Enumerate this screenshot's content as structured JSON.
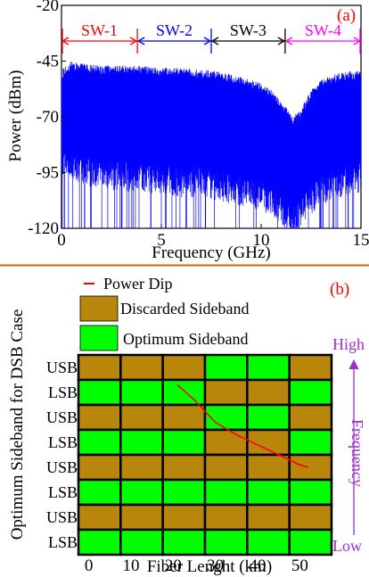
{
  "chart_data": [
    {
      "type": "area",
      "panel_label": "(a)",
      "xlabel": "Frequency (GHz)",
      "ylabel": "Power (dBm)",
      "xlim": [
        0,
        15
      ],
      "ylim": [
        -120,
        -20
      ],
      "xticks": [
        "0",
        "5",
        "10",
        "15"
      ],
      "yticks": [
        "-20",
        "-45",
        "-70",
        "-95",
        "-120"
      ],
      "grid": false,
      "color": "#0000ff",
      "envelope": {
        "x": [
          0,
          0.5,
          1,
          2,
          3,
          4,
          5,
          6,
          7,
          7.5,
          8,
          9,
          10,
          10.5,
          11,
          11.3,
          11.6,
          12,
          12.5,
          13,
          14,
          15
        ],
        "upper": [
          -49,
          -45,
          -46,
          -47,
          -47,
          -47,
          -48,
          -48,
          -49,
          -49,
          -50,
          -52,
          -55,
          -58,
          -63,
          -66,
          -70,
          -66,
          -58,
          -53,
          -50,
          -49
        ],
        "lower": [
          -92,
          -95,
          -97,
          -98,
          -99,
          -100,
          -101,
          -102,
          -102,
          -103,
          -104,
          -106,
          -108,
          -110,
          -114,
          -118,
          -120,
          -116,
          -110,
          -106,
          -102,
          -100
        ]
      },
      "windows": [
        {
          "label": "SW-1",
          "start": 0,
          "end": 3.8,
          "color": "#ff0000"
        },
        {
          "label": "SW-2",
          "start": 3.8,
          "end": 7.5,
          "color": "#0000ff"
        },
        {
          "label": "SW-3",
          "start": 7.5,
          "end": 11.2,
          "color": "#000000"
        },
        {
          "label": "SW-4",
          "start": 11.2,
          "end": 15,
          "color": "#ff00ff"
        }
      ]
    },
    {
      "type": "heatmap",
      "panel_label": "(b)",
      "xlabel": "Fiber Lenght (km)",
      "ylabel": "Optimum Sideband for DSB Case",
      "columns": [
        "0",
        "10",
        "20",
        "30",
        "40",
        "50"
      ],
      "rows": [
        "USB",
        "LSB",
        "USB",
        "LSB",
        "USB",
        "LSB",
        "USB",
        "LSB"
      ],
      "cells": [
        [
          "D",
          "D",
          "D",
          "O",
          "O",
          "D"
        ],
        [
          "O",
          "O",
          "O",
          "D",
          "D",
          "O"
        ],
        [
          "D",
          "D",
          "D",
          "O",
          "O",
          "D"
        ],
        [
          "O",
          "O",
          "O",
          "D",
          "D",
          "O"
        ],
        [
          "D",
          "D",
          "D",
          "D",
          "D",
          "D"
        ],
        [
          "O",
          "O",
          "O",
          "O",
          "O",
          "O"
        ],
        [
          "D",
          "D",
          "D",
          "D",
          "D",
          "D"
        ],
        [
          "O",
          "O",
          "O",
          "O",
          "O",
          "O"
        ]
      ],
      "legend": [
        {
          "key": "dip",
          "label": "Power Dip",
          "color": "#ff0000"
        },
        {
          "key": "D",
          "label": "Discarded Sideband",
          "color": "#b8860b"
        },
        {
          "key": "O",
          "label": "Optimum Sideband",
          "color": "#00ff00"
        }
      ],
      "power_dip": {
        "x_km": [
          21,
          25,
          30,
          35,
          40,
          45,
          50,
          52
        ],
        "row_pos": [
          1.2,
          1.8,
          2.7,
          3.2,
          3.6,
          4.0,
          4.4,
          4.5
        ]
      },
      "right_axis": {
        "label": "Frequency",
        "top": "High",
        "bottom": "Low",
        "color": "#9932cc"
      }
    }
  ]
}
